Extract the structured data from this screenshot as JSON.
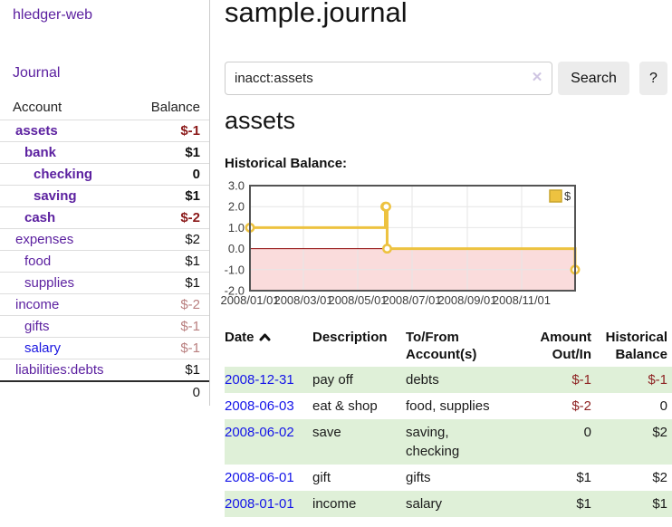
{
  "sidebar": {
    "title": "hledger-web",
    "nav": {
      "journal": "Journal"
    },
    "accounts_table": {
      "headers": {
        "account": "Account",
        "balance": "Balance"
      },
      "rows": [
        {
          "name": "assets",
          "indent": 1,
          "bold": true,
          "balance": "$-1",
          "negative": true,
          "dim": false,
          "blue": false
        },
        {
          "name": "bank",
          "indent": 2,
          "bold": true,
          "balance": "$1",
          "negative": false,
          "dim": false,
          "blue": false
        },
        {
          "name": "checking",
          "indent": 3,
          "bold": true,
          "balance": "0",
          "negative": false,
          "dim": false,
          "blue": false
        },
        {
          "name": "saving",
          "indent": 3,
          "bold": true,
          "balance": "$1",
          "negative": false,
          "dim": false,
          "blue": false
        },
        {
          "name": "cash",
          "indent": 2,
          "bold": true,
          "balance": "$-2",
          "negative": true,
          "dim": false,
          "blue": false
        },
        {
          "name": "expenses",
          "indent": 1,
          "bold": false,
          "balance": "$2",
          "negative": false,
          "dim": false,
          "blue": false
        },
        {
          "name": "food",
          "indent": 2,
          "bold": false,
          "balance": "$1",
          "negative": false,
          "dim": false,
          "blue": false
        },
        {
          "name": "supplies",
          "indent": 2,
          "bold": false,
          "balance": "$1",
          "negative": false,
          "dim": false,
          "blue": false
        },
        {
          "name": "income",
          "indent": 1,
          "bold": false,
          "balance": "$-2",
          "negative": true,
          "dim": true,
          "blue": false
        },
        {
          "name": "gifts",
          "indent": 2,
          "bold": false,
          "balance": "$-1",
          "negative": true,
          "dim": true,
          "blue": false
        },
        {
          "name": "salary",
          "indent": 2,
          "bold": false,
          "balance": "$-1",
          "negative": true,
          "dim": true,
          "blue": true
        },
        {
          "name": "liabilities:debts",
          "indent": 1,
          "bold": false,
          "balance": "$1",
          "negative": false,
          "dim": false,
          "blue": false
        }
      ],
      "total": "0"
    }
  },
  "main": {
    "title": "sample.journal",
    "search": {
      "value": "inacct:assets",
      "clear": "✕",
      "button_label": "Search",
      "help_label": "?"
    },
    "heading": "assets",
    "chart_title": "Historical Balance:"
  },
  "chart_data": {
    "type": "line",
    "title": "Historical Balance",
    "steps": true,
    "series": [
      {
        "name": "$",
        "color": "#edc240",
        "points": [
          [
            "2008-01-01",
            1
          ],
          [
            "2008-06-01",
            2
          ],
          [
            "2008-06-02",
            2
          ],
          [
            "2008-06-03",
            0
          ],
          [
            "2008-12-31",
            -1
          ]
        ]
      }
    ],
    "xlim": [
      "2008-01-01",
      "2008-12-31"
    ],
    "ylim": [
      -2,
      3
    ],
    "x_ticks": [
      "2008/01/01",
      "2008/03/01",
      "2008/05/01",
      "2008/07/01",
      "2008/09/01",
      "2008/11/01"
    ],
    "y_ticks": [
      3.0,
      2.0,
      1.0,
      0.0,
      -1.0,
      -2.0
    ],
    "legend": {
      "label": "$",
      "position": "top-right"
    },
    "grid": true,
    "border_color": "#545454",
    "grid_color": "#e6e6e6",
    "zero_line_color": "#8b0000",
    "negative_region_color": "#fadcdc",
    "tick_label_color": "#3c3c3c"
  },
  "transactions": {
    "headers": {
      "date": "Date",
      "description": "Description",
      "accounts": "To/From Account(s)",
      "amount": "Amount Out/In",
      "balance": "Historical Balance"
    },
    "sort": {
      "column": "date",
      "direction": "ascending"
    },
    "rows": [
      {
        "date": "2008-12-31",
        "description": "pay off",
        "accounts": "debts",
        "amount": "$-1",
        "amount_negative": true,
        "balance": "$-1",
        "balance_negative": true
      },
      {
        "date": "2008-06-03",
        "description": "eat & shop",
        "accounts": "food, supplies",
        "amount": "$-2",
        "amount_negative": true,
        "balance": "0",
        "balance_negative": false
      },
      {
        "date": "2008-06-02",
        "description": "save",
        "accounts": "saving, checking",
        "amount": "0",
        "amount_negative": false,
        "balance": "$2",
        "balance_negative": false
      },
      {
        "date": "2008-06-01",
        "description": "gift",
        "accounts": "gifts",
        "amount": "$1",
        "amount_negative": false,
        "balance": "$2",
        "balance_negative": false
      },
      {
        "date": "2008-01-01",
        "description": "income",
        "accounts": "salary",
        "amount": "$1",
        "amount_negative": false,
        "balance": "$1",
        "balance_negative": false
      }
    ]
  },
  "colors": {
    "accent_purple": "#5c21a0",
    "link_blue": "#1414e8",
    "negative_bold": "#8b1a1a",
    "negative_dim": "#b97f7f",
    "negative_table": "#8e2424",
    "row_green": "#dff0d8",
    "series_gold": "#edc240"
  }
}
